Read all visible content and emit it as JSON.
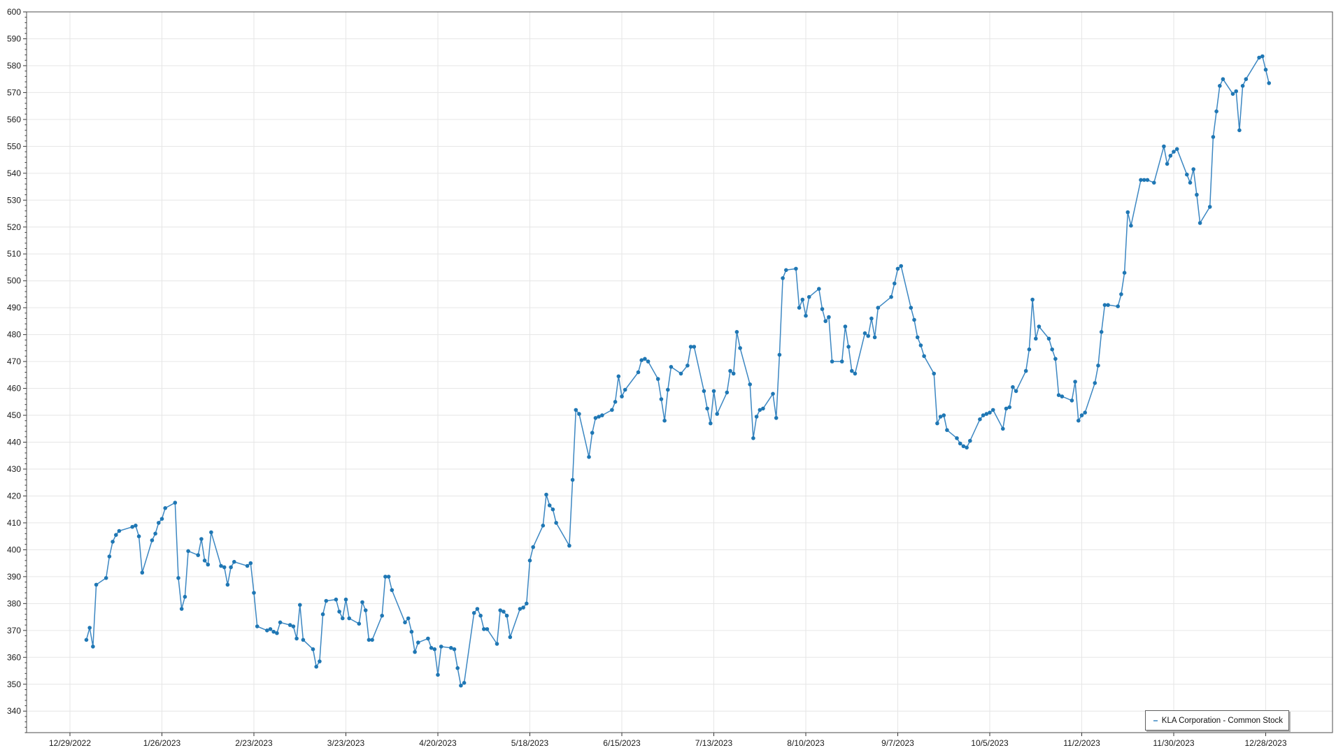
{
  "chart_data": {
    "type": "line",
    "title": "",
    "legend": {
      "label": "KLA Corporation  - Common Stock",
      "position": "bottom-right"
    },
    "x_axis": {
      "start": "2022-12-29",
      "interval_days": 28,
      "tick_labels": [
        "12/29/2022",
        "1/26/2023",
        "2/23/2023",
        "3/23/2023",
        "4/20/2023",
        "5/18/2023",
        "6/15/2023",
        "7/13/2023",
        "8/10/2023",
        "9/7/2023",
        "10/5/2023",
        "11/2/2023",
        "11/30/2023",
        "12/28/2023"
      ]
    },
    "y_axis": {
      "label_min": 340,
      "label_max": 600,
      "step": 10,
      "minor_step": 2,
      "range_min": 332,
      "range_max": 600,
      "grid": true
    },
    "series": [
      {
        "name": "KLA Corporation  - Common Stock",
        "dates": [
          "2023-01-03",
          "2023-01-04",
          "2023-01-05",
          "2023-01-06",
          "2023-01-09",
          "2023-01-10",
          "2023-01-11",
          "2023-01-12",
          "2023-01-13",
          "2023-01-17",
          "2023-01-18",
          "2023-01-19",
          "2023-01-20",
          "2023-01-23",
          "2023-01-24",
          "2023-01-25",
          "2023-01-26",
          "2023-01-27",
          "2023-01-30",
          "2023-01-31",
          "2023-02-01",
          "2023-02-02",
          "2023-02-03",
          "2023-02-06",
          "2023-02-07",
          "2023-02-08",
          "2023-02-09",
          "2023-02-10",
          "2023-02-13",
          "2023-02-14",
          "2023-02-15",
          "2023-02-16",
          "2023-02-17",
          "2023-02-21",
          "2023-02-22",
          "2023-02-23",
          "2023-02-24",
          "2023-02-27",
          "2023-02-28",
          "2023-03-01",
          "2023-03-02",
          "2023-03-03",
          "2023-03-06",
          "2023-03-07",
          "2023-03-08",
          "2023-03-09",
          "2023-03-10",
          "2023-03-13",
          "2023-03-14",
          "2023-03-15",
          "2023-03-16",
          "2023-03-17",
          "2023-03-20",
          "2023-03-21",
          "2023-03-22",
          "2023-03-23",
          "2023-03-24",
          "2023-03-27",
          "2023-03-28",
          "2023-03-29",
          "2023-03-30",
          "2023-03-31",
          "2023-04-03",
          "2023-04-04",
          "2023-04-05",
          "2023-04-06",
          "2023-04-10",
          "2023-04-11",
          "2023-04-12",
          "2023-04-13",
          "2023-04-14",
          "2023-04-17",
          "2023-04-18",
          "2023-04-19",
          "2023-04-20",
          "2023-04-21",
          "2023-04-24",
          "2023-04-25",
          "2023-04-26",
          "2023-04-27",
          "2023-04-28",
          "2023-05-01",
          "2023-05-02",
          "2023-05-03",
          "2023-05-04",
          "2023-05-05",
          "2023-05-08",
          "2023-05-09",
          "2023-05-10",
          "2023-05-11",
          "2023-05-12",
          "2023-05-15",
          "2023-05-16",
          "2023-05-17",
          "2023-05-18",
          "2023-05-19",
          "2023-05-22",
          "2023-05-23",
          "2023-05-24",
          "2023-05-25",
          "2023-05-26",
          "2023-05-30",
          "2023-05-31",
          "2023-06-01",
          "2023-06-02",
          "2023-06-05",
          "2023-06-06",
          "2023-06-07",
          "2023-06-08",
          "2023-06-09",
          "2023-06-12",
          "2023-06-13",
          "2023-06-14",
          "2023-06-15",
          "2023-06-16",
          "2023-06-20",
          "2023-06-21",
          "2023-06-22",
          "2023-06-23",
          "2023-06-26",
          "2023-06-27",
          "2023-06-28",
          "2023-06-29",
          "2023-06-30",
          "2023-07-03",
          "2023-07-05",
          "2023-07-06",
          "2023-07-07",
          "2023-07-10",
          "2023-07-11",
          "2023-07-12",
          "2023-07-13",
          "2023-07-14",
          "2023-07-17",
          "2023-07-18",
          "2023-07-19",
          "2023-07-20",
          "2023-07-21",
          "2023-07-24",
          "2023-07-25",
          "2023-07-26",
          "2023-07-27",
          "2023-07-28",
          "2023-07-31",
          "2023-08-01",
          "2023-08-02",
          "2023-08-03",
          "2023-08-04",
          "2023-08-07",
          "2023-08-08",
          "2023-08-09",
          "2023-08-10",
          "2023-08-11",
          "2023-08-14",
          "2023-08-15",
          "2023-08-16",
          "2023-08-17",
          "2023-08-18",
          "2023-08-21",
          "2023-08-22",
          "2023-08-23",
          "2023-08-24",
          "2023-08-25",
          "2023-08-28",
          "2023-08-29",
          "2023-08-30",
          "2023-08-31",
          "2023-09-01",
          "2023-09-05",
          "2023-09-06",
          "2023-09-07",
          "2023-09-08",
          "2023-09-11",
          "2023-09-12",
          "2023-09-13",
          "2023-09-14",
          "2023-09-15",
          "2023-09-18",
          "2023-09-19",
          "2023-09-20",
          "2023-09-21",
          "2023-09-22",
          "2023-09-25",
          "2023-09-26",
          "2023-09-27",
          "2023-09-28",
          "2023-09-29",
          "2023-10-02",
          "2023-10-03",
          "2023-10-04",
          "2023-10-05",
          "2023-10-06",
          "2023-10-09",
          "2023-10-10",
          "2023-10-11",
          "2023-10-12",
          "2023-10-13",
          "2023-10-16",
          "2023-10-17",
          "2023-10-18",
          "2023-10-19",
          "2023-10-20",
          "2023-10-23",
          "2023-10-24",
          "2023-10-25",
          "2023-10-26",
          "2023-10-27",
          "2023-10-30",
          "2023-10-31",
          "2023-11-01",
          "2023-11-02",
          "2023-11-03",
          "2023-11-06",
          "2023-11-07",
          "2023-11-08",
          "2023-11-09",
          "2023-11-10",
          "2023-11-13",
          "2023-11-14",
          "2023-11-15",
          "2023-11-16",
          "2023-11-17",
          "2023-11-20",
          "2023-11-21",
          "2023-11-22",
          "2023-11-24",
          "2023-11-27",
          "2023-11-28",
          "2023-11-29",
          "2023-11-30",
          "2023-12-01",
          "2023-12-04",
          "2023-12-05",
          "2023-12-06",
          "2023-12-07",
          "2023-12-08",
          "2023-12-11",
          "2023-12-12",
          "2023-12-13",
          "2023-12-14",
          "2023-12-15",
          "2023-12-18",
          "2023-12-19",
          "2023-12-20",
          "2023-12-21",
          "2023-12-22",
          "2023-12-26",
          "2023-12-27",
          "2023-12-28",
          "2023-12-29"
        ],
        "values": [
          366.5,
          371,
          364,
          387,
          389.5,
          397.5,
          403,
          405.5,
          407,
          408.5,
          409,
          405,
          391.5,
          403.5,
          406,
          410,
          411.5,
          415.5,
          417.5,
          389.5,
          378,
          382.5,
          399.5,
          398,
          404,
          396,
          394.5,
          406.5,
          394,
          393.5,
          387,
          393.5,
          395.5,
          394,
          395,
          384,
          371.5,
          370,
          370.5,
          369.5,
          369,
          373,
          372,
          371.5,
          367,
          379.5,
          366.5,
          363,
          356.5,
          358.5,
          376,
          381,
          381.5,
          377,
          374.5,
          381.5,
          374.5,
          372.5,
          380.5,
          377.5,
          366.5,
          366.5,
          375.5,
          390,
          390,
          385,
          373,
          374.5,
          369.5,
          362,
          365.5,
          367,
          363.5,
          363,
          353.5,
          364,
          363.5,
          363,
          356,
          349.5,
          350.5,
          376.5,
          378,
          375.5,
          370.5,
          370.5,
          365,
          377.5,
          377,
          375.5,
          367.5,
          378,
          378.5,
          380,
          396,
          401,
          409,
          420.5,
          416.5,
          415,
          410,
          401.5,
          426,
          452,
          450.5,
          434.5,
          443.5,
          449,
          449.5,
          450,
          452,
          455,
          464.5,
          457,
          459.5,
          466,
          470.5,
          471,
          470,
          463.5,
          456,
          448,
          459.5,
          468,
          465.5,
          468.5,
          475.5,
          475.5,
          459,
          452.5,
          447,
          459,
          450.5,
          458.5,
          466.5,
          465.5,
          481,
          475,
          461.5,
          441.5,
          449.5,
          452,
          452.5,
          458,
          449,
          472.5,
          501,
          504,
          504.5,
          490,
          493,
          487,
          494,
          497,
          489.5,
          485,
          486.5,
          470,
          470,
          483,
          475.5,
          466.5,
          465.5,
          480.5,
          479.5,
          486,
          479,
          490,
          494,
          499,
          504.5,
          505.5,
          490,
          485.5,
          479,
          476,
          472,
          465.5,
          447,
          449.5,
          450,
          444.5,
          441.5,
          439.5,
          438.5,
          438,
          440.5,
          448.5,
          450,
          450.5,
          451,
          452,
          445,
          452.5,
          453,
          460.5,
          459,
          466.5,
          474.5,
          493,
          478.5,
          483,
          478.5,
          474.5,
          471,
          457.5,
          457,
          455.5,
          462.5,
          448,
          450,
          451,
          462,
          468.5,
          481,
          491,
          491,
          490.5,
          495,
          503,
          525.5,
          520.5,
          537.5,
          537.5,
          537.5,
          536.5,
          550,
          543.5,
          546.5,
          548,
          549,
          539.5,
          536.5,
          541.5,
          532,
          521.5,
          527.5,
          553.5,
          563,
          572.5,
          575,
          569.5,
          570.5,
          556,
          572.5,
          575,
          583,
          583.5,
          578.5,
          573.5
        ]
      }
    ]
  },
  "colors": {
    "line": "#3c87c2",
    "marker": "#1f77b4",
    "grid": "#e6e6e6",
    "axis": "#4d4d4d",
    "tick": "#333333",
    "text": "#1a1a1a",
    "background": "#ffffff"
  }
}
